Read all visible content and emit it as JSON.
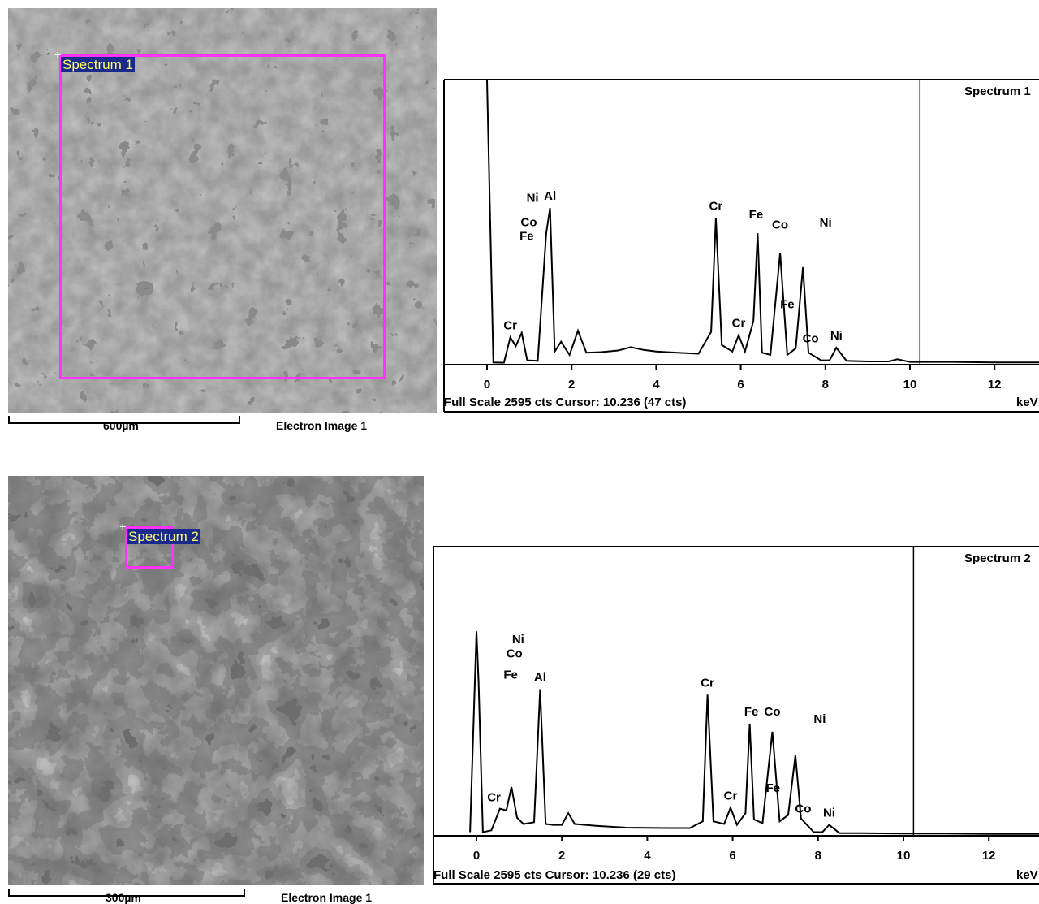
{
  "panels": [
    {
      "image": {
        "roi_label": "Spectrum 1",
        "scale_label": "600µm",
        "image_label": "Electron Image 1"
      },
      "spectrum": {
        "title": "Spectrum 1",
        "footer": "Full Scale 2595 cts Cursor: 10.236  (47 cts)",
        "unit": "keV"
      }
    },
    {
      "image": {
        "roi_label": "Spectrum 2",
        "scale_label": "300µm",
        "image_label": "Electron Image 1"
      },
      "spectrum": {
        "title": "Spectrum 2",
        "footer": "Full Scale 2595 cts Cursor: 10.236  (29 cts)",
        "unit": "keV"
      }
    }
  ],
  "chart_data": [
    {
      "type": "line",
      "title": "Spectrum 1",
      "xlabel": "keV",
      "xlim": [
        -1,
        13.2
      ],
      "xticks": [
        0,
        2,
        4,
        6,
        8,
        10,
        12
      ],
      "cursor_x": 10.236,
      "full_scale_cts": 2595,
      "series": [
        {
          "x": [
            0.0,
            0.15,
            0.4,
            0.55,
            0.68,
            0.82,
            0.95,
            1.2,
            1.4,
            1.49,
            1.6,
            1.75,
            1.95,
            2.15,
            2.35,
            2.7,
            3.1,
            3.4,
            3.7,
            4.0,
            4.5,
            5.0,
            5.3,
            5.41,
            5.55,
            5.8,
            5.95,
            6.1,
            6.3,
            6.4,
            6.5,
            6.7,
            6.93,
            7.1,
            7.3,
            7.47,
            7.6,
            7.9,
            8.1,
            8.26,
            8.5,
            9.0,
            9.5,
            9.7,
            10.0,
            10.5,
            11.0,
            12.0,
            13.2
          ],
          "y": [
            2595,
            20,
            18,
            250,
            170,
            290,
            40,
            35,
            1200,
            1430,
            120,
            210,
            90,
            310,
            110,
            115,
            130,
            160,
            135,
            120,
            110,
            100,
            300,
            1340,
            180,
            120,
            270,
            120,
            400,
            1200,
            110,
            90,
            1020,
            90,
            150,
            890,
            110,
            40,
            40,
            155,
            35,
            30,
            30,
            50,
            25,
            25,
            25,
            20,
            20
          ]
        }
      ],
      "annotations": [
        {
          "label": "Al",
          "x": 1.49
        },
        {
          "label": "Cr",
          "x": 5.41
        },
        {
          "label": "Fe",
          "x": 6.4
        },
        {
          "label": "Co",
          "x": 6.93
        },
        {
          "label": "Ni",
          "x": 7.47
        },
        {
          "label": "Fe",
          "x": 7.06
        },
        {
          "label": "Co",
          "x": 7.65
        },
        {
          "label": "Ni",
          "x": 1.0
        },
        {
          "label": "Co",
          "x": 0.95
        },
        {
          "label": "Fe",
          "x": 0.9
        },
        {
          "label": "Cr",
          "x": 0.55
        },
        {
          "label": "Cr",
          "x": 5.95
        },
        {
          "label": "Ni",
          "x": 8.26
        }
      ]
    },
    {
      "type": "line",
      "title": "Spectrum 2",
      "xlabel": "keV",
      "xlim": [
        -1,
        13.2
      ],
      "xticks": [
        0,
        2,
        4,
        6,
        8,
        10,
        12
      ],
      "cursor_x": 10.236,
      "full_scale_cts": 2595,
      "series": [
        {
          "x": [
            -0.15,
            0.0,
            0.05,
            0.15,
            0.35,
            0.55,
            0.7,
            0.82,
            0.95,
            1.1,
            1.35,
            1.49,
            1.62,
            1.8,
            2.0,
            2.15,
            2.3,
            2.8,
            3.5,
            4.5,
            5.0,
            5.3,
            5.41,
            5.55,
            5.8,
            5.95,
            6.1,
            6.3,
            6.4,
            6.5,
            6.7,
            6.93,
            7.1,
            7.3,
            7.47,
            7.6,
            7.9,
            8.1,
            8.26,
            8.5,
            9.0,
            10.0,
            11.0,
            12.0,
            13.2
          ],
          "y": [
            40,
            2260,
            1700,
            40,
            60,
            300,
            280,
            540,
            200,
            130,
            150,
            1620,
            130,
            120,
            120,
            250,
            130,
            110,
            90,
            85,
            85,
            160,
            1560,
            160,
            130,
            310,
            120,
            250,
            1240,
            180,
            140,
            1150,
            160,
            230,
            890,
            190,
            40,
            40,
            120,
            30,
            30,
            25,
            25,
            20,
            20
          ]
        }
      ],
      "annotations": [
        {
          "label": "Al",
          "x": 1.49
        },
        {
          "label": "Cr",
          "x": 5.41
        },
        {
          "label": "Fe",
          "x": 6.4
        },
        {
          "label": "Co",
          "x": 6.93
        },
        {
          "label": "Ni",
          "x": 7.47
        },
        {
          "label": "Fe",
          "x": 7.06
        },
        {
          "label": "Co",
          "x": 7.65
        },
        {
          "label": "Ni",
          "x": 0.9
        },
        {
          "label": "Co",
          "x": 0.85
        },
        {
          "label": "Fe",
          "x": 0.8
        },
        {
          "label": "Cr",
          "x": 0.6
        },
        {
          "label": "Cr",
          "x": 5.95
        },
        {
          "label": "Ni",
          "x": 8.26
        }
      ]
    }
  ]
}
